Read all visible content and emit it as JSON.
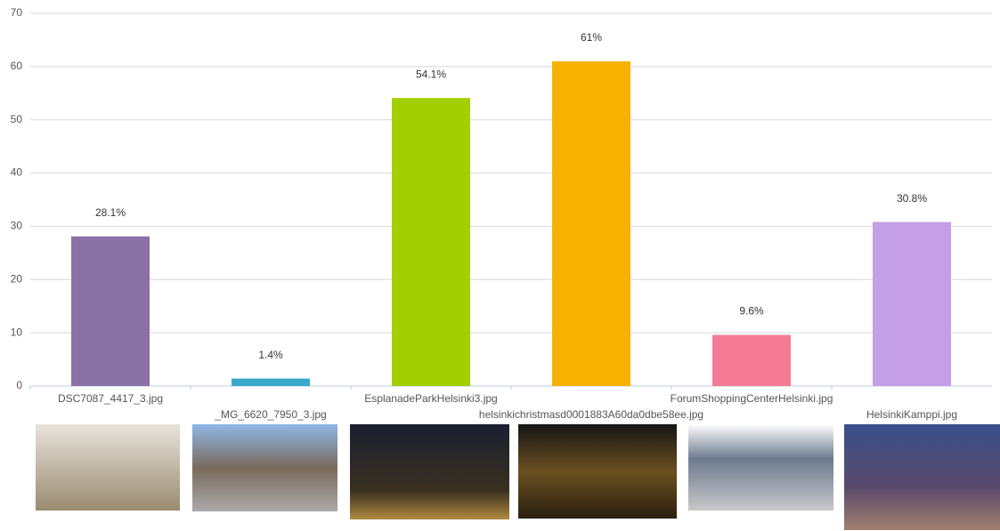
{
  "chart_data": {
    "type": "bar",
    "categories": [
      "DSC7087_4417_3.jpg",
      "_MG_6620_7950_3.jpg",
      "EsplanadeParkHelsinki3.jpg",
      "helsinkichristmasd0001883A60da0dbe58ee.jpg",
      "ForumShoppingCenterHelsinki.jpg",
      "HelsinkiKamppi.jpg"
    ],
    "values": [
      28.1,
      1.4,
      54.1,
      61,
      9.6,
      30.8
    ],
    "value_labels": [
      "28.1%",
      "1.4%",
      "54.1%",
      "61%",
      "9.6%",
      "30.8%"
    ],
    "colors": [
      "#8b72a6",
      "#3aa9c9",
      "#a3ce00",
      "#f7b200",
      "#f47a96",
      "#c49ee6"
    ],
    "ylim": [
      0,
      70
    ],
    "yticks": [
      0,
      10,
      20,
      30,
      40,
      50,
      60,
      70
    ],
    "grid": true
  }
}
